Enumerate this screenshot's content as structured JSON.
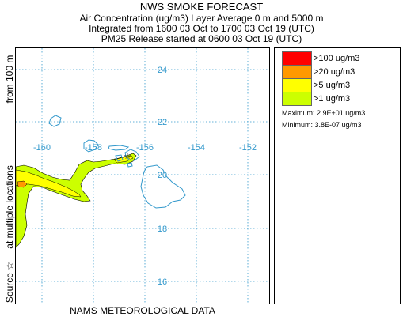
{
  "header": {
    "title": "NWS SMOKE FORECAST",
    "line1": "Air Concentration (ug/m3) Layer Average    0 m and  5000 m",
    "line2": "Integrated from 1600 03 Oct to 1700 03 Oct 19 (UTC)",
    "line3": "PM25 Release started at 0600 03 Oct 19 (UTC)"
  },
  "side_labels": {
    "from": "from  100 m",
    "multiple": "at multiple locations",
    "source": "Source ☆"
  },
  "bottom_label": "NAMS METEOROLOGICAL DATA",
  "map": {
    "lat_labels": [
      "24",
      "22",
      "20",
      "18",
      "16"
    ],
    "lon_labels": [
      "-160",
      "-158",
      "-156",
      "-154",
      "-152"
    ],
    "lat_range": [
      15.1,
      25.1
    ],
    "lon_range": [
      -161.05,
      -151.15
    ]
  },
  "legend": {
    "items": [
      {
        "label": ">100 ug/m3",
        "color": "#ff0000"
      },
      {
        "label": ">20 ug/m3",
        "color": "#ff9900"
      },
      {
        "label": ">5 ug/m3",
        "color": "#ffff00"
      },
      {
        "label": ">1 ug/m3",
        "color": "#ccff00"
      }
    ],
    "maximum": "Maximum: 2.9E+01 ug/m3",
    "minimum": "Minimum: 3.8E-07 ug/m3"
  },
  "colors": {
    "coast": "#3399cc",
    "grid": "#3399cc",
    "plume_low": "#ccff00",
    "plume_mid": "#ffff00",
    "plume_high": "#ff9900"
  }
}
